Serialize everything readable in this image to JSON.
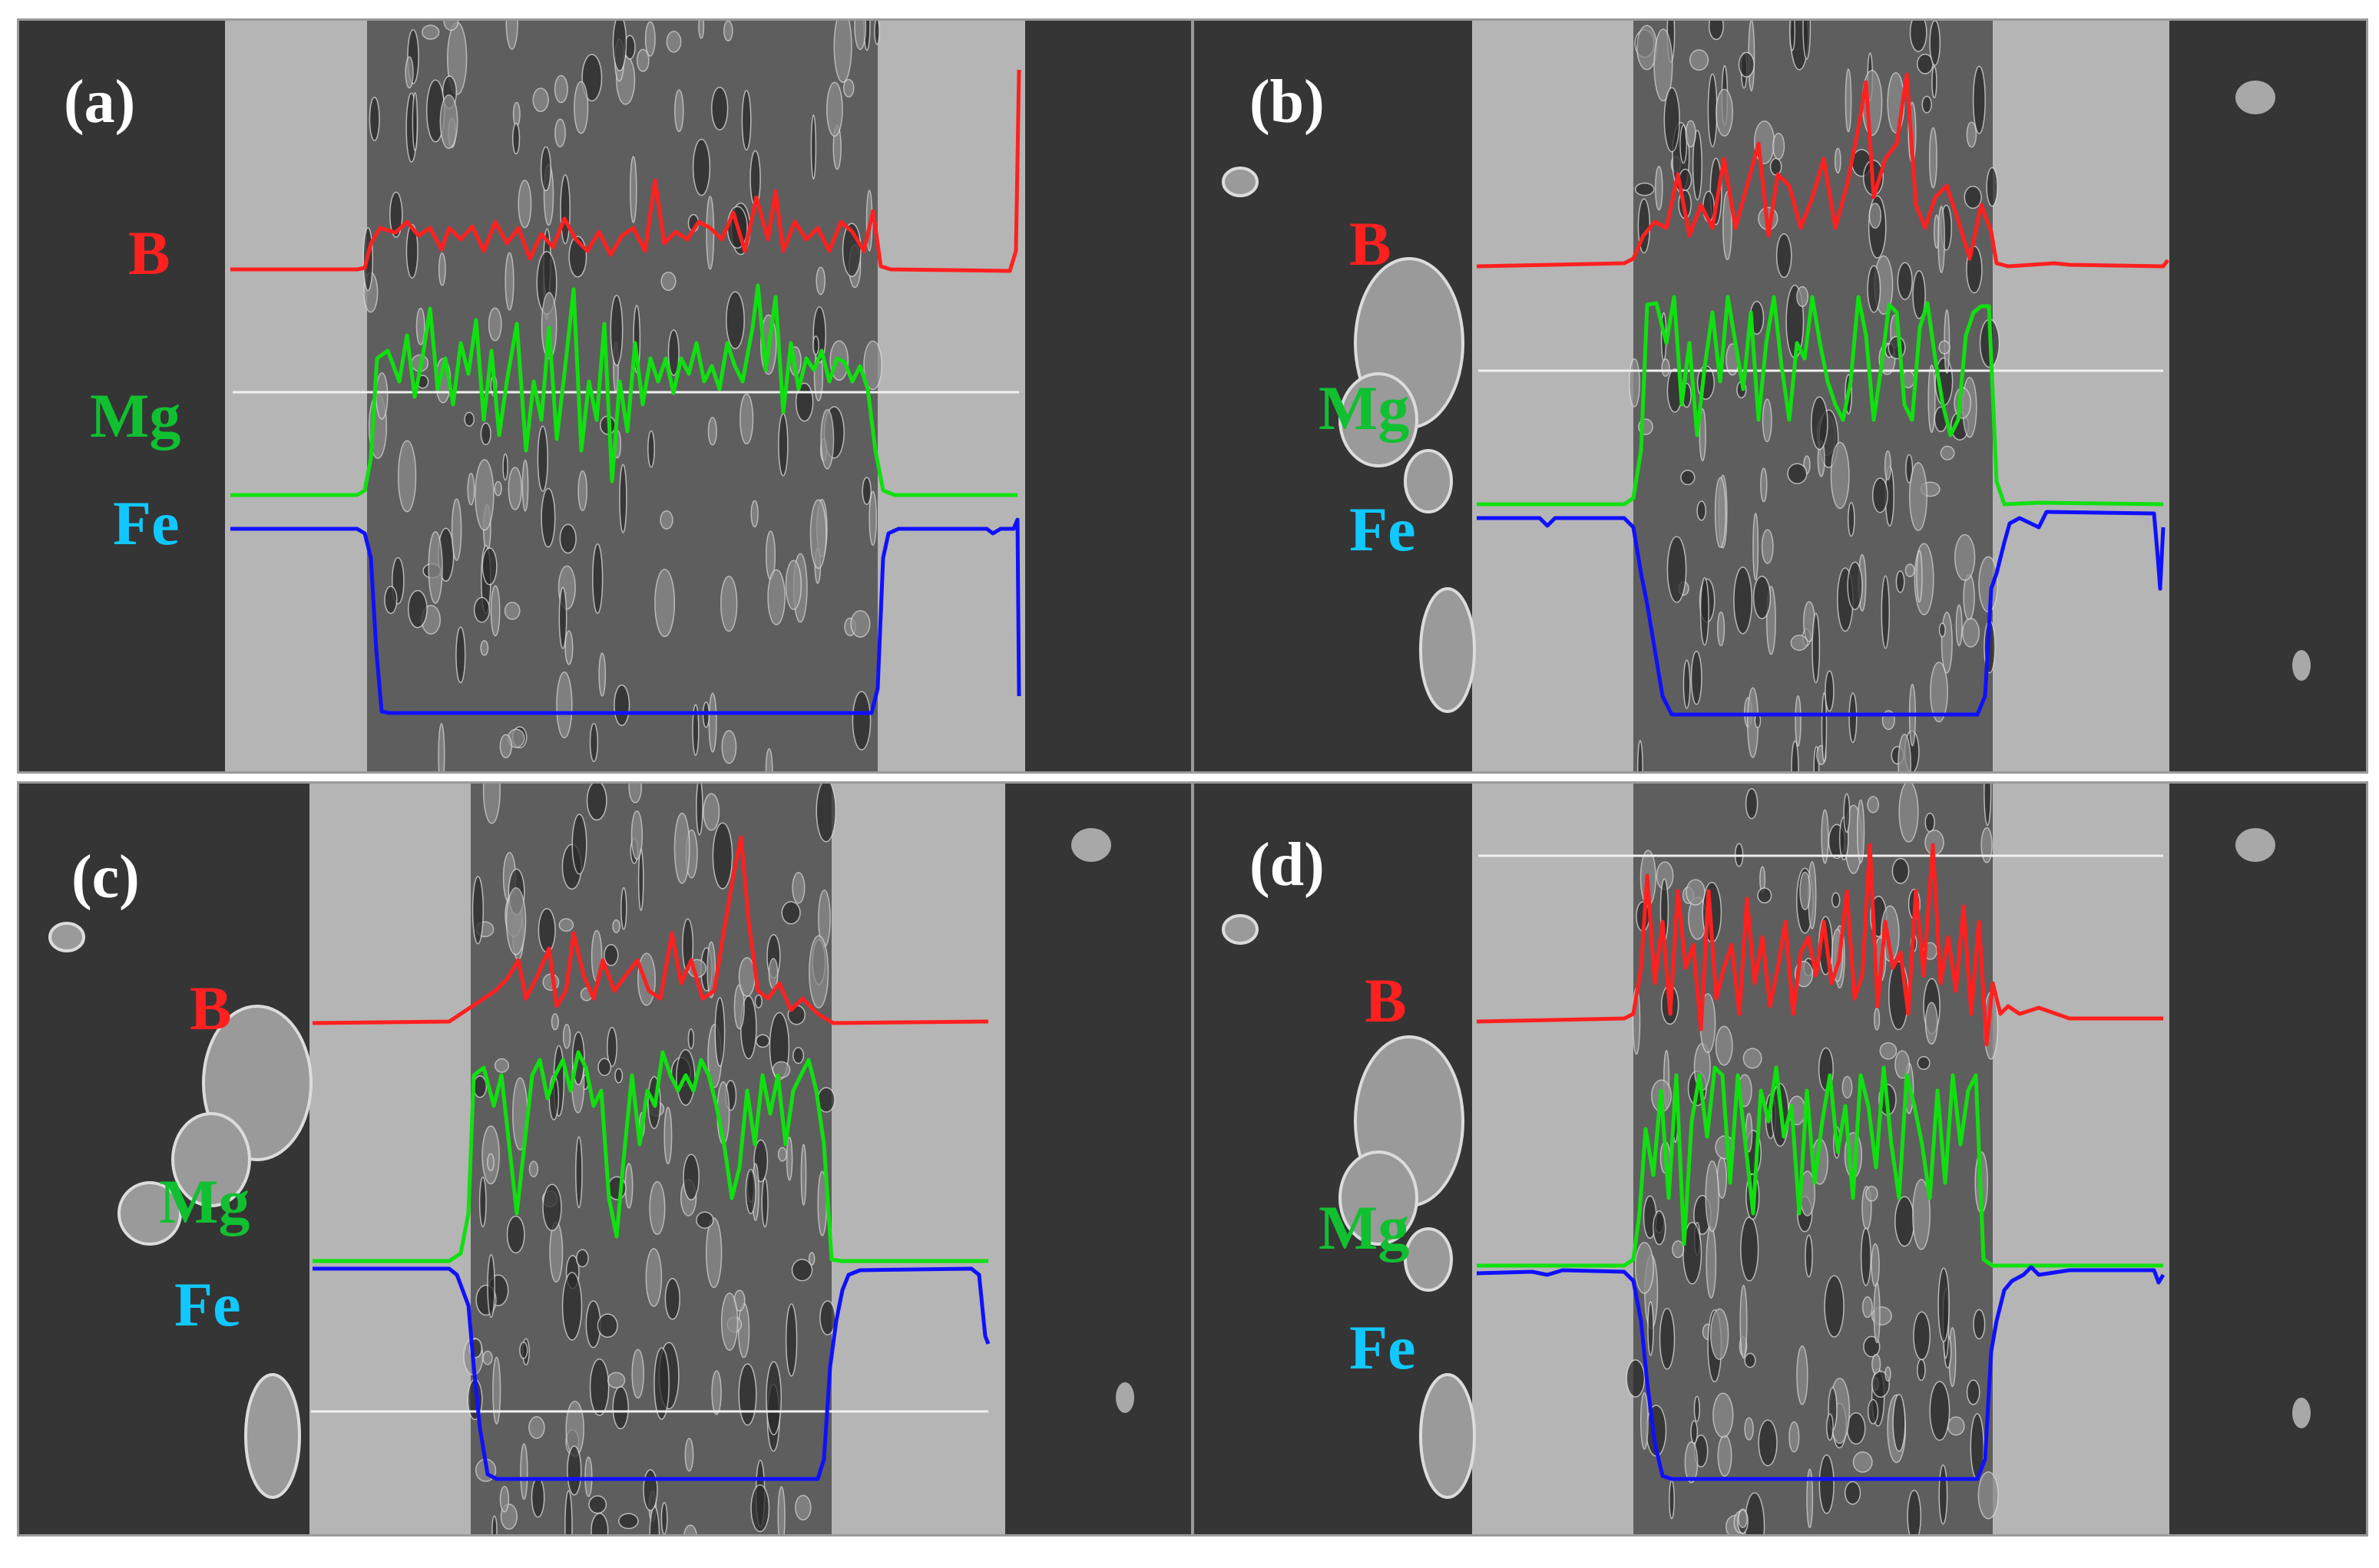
{
  "figure": {
    "panels": [
      {
        "id": "a",
        "label": "(a)",
        "elements": {
          "B": "B",
          "Mg": "Mg",
          "Fe": "Fe"
        }
      },
      {
        "id": "b",
        "label": "(b)",
        "elements": {
          "B": "B",
          "Mg": "Mg",
          "Fe": "Fe"
        }
      },
      {
        "id": "c",
        "label": "(c)",
        "elements": {
          "B": "B",
          "Mg": "Mg",
          "Fe": "Fe"
        }
      },
      {
        "id": "d",
        "label": "(d)",
        "elements": {
          "B": "B",
          "Mg": "Mg",
          "Fe": "Fe"
        }
      }
    ],
    "colors": {
      "B": "#ff2020",
      "Mg": "#10e010",
      "Fe": "#1010ff",
      "B_label": "#ff2020",
      "Mg_label": "#10c030",
      "Fe_label": "#10c8ff",
      "panel_label": "#ffffff",
      "scan_line": "#f0f0f0",
      "matrix": "#353535",
      "sheath": "#b5b5b5",
      "core": "#5e5e5e"
    }
  }
}
